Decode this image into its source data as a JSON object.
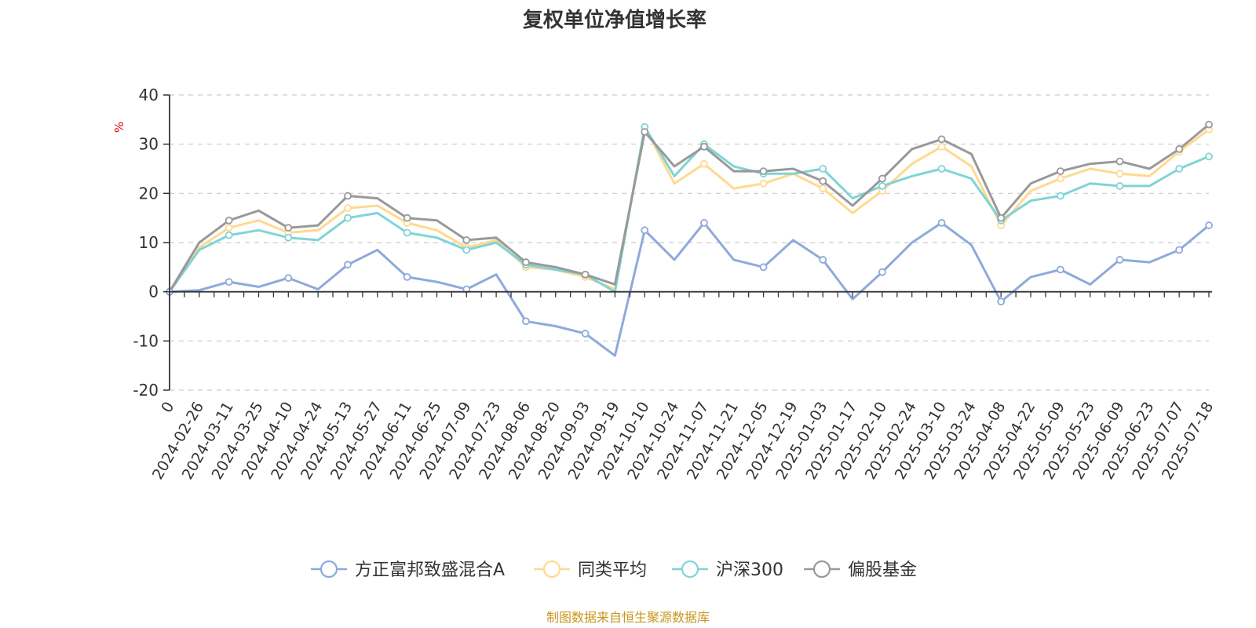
{
  "chart_data": {
    "type": "line",
    "title": "复权单位净值增长率",
    "y_unit": "%",
    "ylim": [
      -20,
      40
    ],
    "y_ticks": [
      40,
      30,
      20,
      10,
      0,
      -10,
      -20
    ],
    "grid": "horizontal dashed",
    "legend_position": "bottom",
    "source": "制图数据来自恒生聚源数据库",
    "x_labels": [
      "0",
      "2024-02-26",
      "2024-03-11",
      "2024-03-25",
      "2024-04-10",
      "2024-04-24",
      "2024-05-13",
      "2024-05-27",
      "2024-06-11",
      "2024-06-25",
      "2024-07-09",
      "2024-07-23",
      "2024-08-06",
      "2024-08-20",
      "2024-09-03",
      "2024-09-19",
      "2024-10-10",
      "2024-10-24",
      "2024-11-07",
      "2024-11-21",
      "2024-12-05",
      "2024-12-19",
      "2025-01-03",
      "2025-01-17",
      "2025-02-10",
      "2025-02-24",
      "2025-03-10",
      "2025-03-24",
      "2025-04-08",
      "2025-04-22",
      "2025-05-09",
      "2025-05-23",
      "2025-06-09",
      "2025-06-23",
      "2025-07-07",
      "2025-07-18"
    ],
    "series": [
      {
        "name": "方正富邦致盛混合A",
        "color": "#8eaadb",
        "values": [
          0,
          0.3,
          2.0,
          1.0,
          2.8,
          0.5,
          5.5,
          8.5,
          3.0,
          2.0,
          0.5,
          3.5,
          -6.0,
          -7.0,
          -8.5,
          -13.0,
          12.5,
          6.5,
          14.0,
          6.5,
          5.0,
          10.5,
          6.5,
          -1.5,
          4.0,
          10.0,
          14.0,
          9.5,
          -2.0,
          3.0,
          4.5,
          1.5,
          6.5,
          6.0,
          8.5,
          13.5
        ]
      },
      {
        "name": "同类平均",
        "color": "#ffd990",
        "values": [
          0,
          9.0,
          13.0,
          14.5,
          12.0,
          12.5,
          17.0,
          17.5,
          14.0,
          12.5,
          9.0,
          10.5,
          5.0,
          4.5,
          3.0,
          0.5,
          33.5,
          22.0,
          26.0,
          21.0,
          22.0,
          24.0,
          21.0,
          16.0,
          20.5,
          26.0,
          29.5,
          25.5,
          13.5,
          20.5,
          23.0,
          25.0,
          24.0,
          23.5,
          28.5,
          33.0
        ]
      },
      {
        "name": "沪深300",
        "color": "#7fd4d6",
        "values": [
          0,
          8.5,
          11.5,
          12.5,
          11.0,
          10.5,
          15.0,
          16.0,
          12.0,
          11.0,
          8.5,
          10.0,
          5.5,
          4.5,
          3.5,
          0,
          33.5,
          23.5,
          30.0,
          25.5,
          24.0,
          24.0,
          25.0,
          19.0,
          21.5,
          23.5,
          25.0,
          23.0,
          14.5,
          18.5,
          19.5,
          22.0,
          21.5,
          21.5,
          25.0,
          27.5
        ]
      },
      {
        "name": "偏股基金",
        "color": "#999999",
        "values": [
          0,
          10.0,
          14.5,
          16.5,
          13.0,
          13.5,
          19.5,
          19.0,
          15.0,
          14.5,
          10.5,
          11.0,
          6.0,
          5.0,
          3.5,
          1.5,
          32.5,
          25.5,
          29.5,
          24.5,
          24.5,
          25.0,
          22.5,
          17.5,
          23.0,
          29.0,
          31.0,
          28.0,
          15.0,
          22.0,
          24.5,
          26.0,
          26.5,
          25.0,
          29.0,
          34.0
        ]
      }
    ]
  }
}
